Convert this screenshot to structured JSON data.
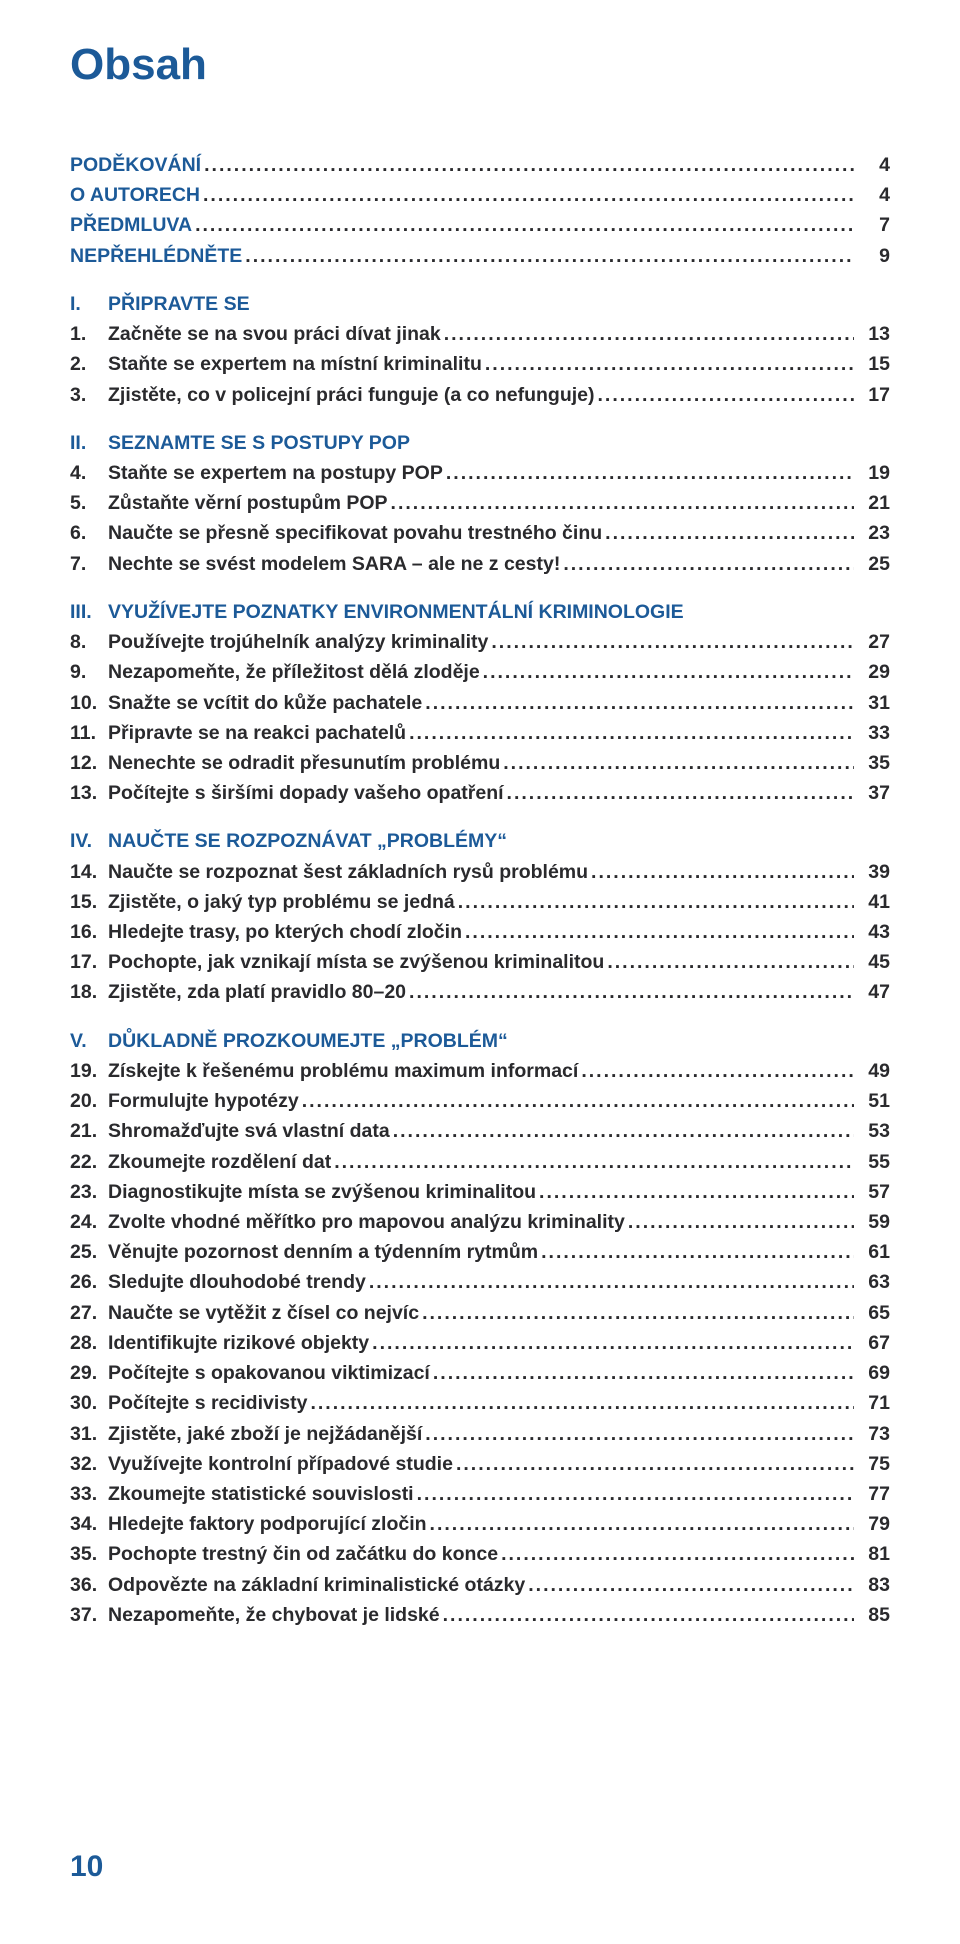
{
  "colors": {
    "heading": "#1c5a98",
    "body": "#2a2a2d",
    "page_bg": "#ffffff"
  },
  "title": "Obsah",
  "footer_page": "10",
  "front_matter": [
    {
      "label": "PODĚKOVÁNÍ",
      "page": "4"
    },
    {
      "label": "O AUTORECH",
      "page": "4"
    },
    {
      "label": "PŘEDMLUVA",
      "page": "7"
    },
    {
      "label": "NEPŘEHLÉDNĚTE",
      "page": "9"
    }
  ],
  "sections": [
    {
      "num": "I.",
      "title": "PŘIPRAVTE SE",
      "items": [
        {
          "n": "1.",
          "t": "Začněte se na svou práci dívat jinak",
          "p": "13"
        },
        {
          "n": "2.",
          "t": "Staňte se expertem na místní kriminalitu",
          "p": "15"
        },
        {
          "n": "3.",
          "t": "Zjistěte, co v policejní práci funguje (a co nefunguje)",
          "p": "17"
        }
      ]
    },
    {
      "num": "II.",
      "title": "SEZNAMTE SE S POSTUPY POP",
      "items": [
        {
          "n": "4.",
          "t": "Staňte se expertem na postupy POP",
          "p": "19"
        },
        {
          "n": "5.",
          "t": "Zůstaňte věrní postupům POP",
          "p": "21"
        },
        {
          "n": "6.",
          "t": "Naučte se přesně specifikovat povahu trestného činu",
          "p": "23"
        },
        {
          "n": "7.",
          "t": "Nechte se svést modelem SARA – ale ne z cesty!",
          "p": "25"
        }
      ]
    },
    {
      "num": "III.",
      "title": "VYUŽÍVEJTE POZNATKY ENVIRONMENTÁLNÍ KRIMINOLOGIE",
      "items": [
        {
          "n": "8.",
          "t": "Používejte trojúhelník analýzy kriminality",
          "p": "27"
        },
        {
          "n": "9.",
          "t": "Nezapomeňte, že příležitost dělá zloděje",
          "p": "29"
        },
        {
          "n": "10.",
          "t": "Snažte se vcítit do kůže pachatele",
          "p": "31"
        },
        {
          "n": "11.",
          "t": "Připravte se na reakci pachatelů",
          "p": "33"
        },
        {
          "n": "12.",
          "t": "Nenechte se odradit přesunutím problému",
          "p": "35"
        },
        {
          "n": "13.",
          "t": "Počítejte s širšími dopady vašeho opatření",
          "p": "37"
        }
      ]
    },
    {
      "num": "IV.",
      "title": "NAUČTE SE ROZPOZNÁVAT „PROBLÉMY“",
      "items": [
        {
          "n": "14.",
          "t": "Naučte se rozpoznat šest základních rysů problému",
          "p": "39"
        },
        {
          "n": "15.",
          "t": "Zjistěte, o jaký typ problému se jedná",
          "p": "41"
        },
        {
          "n": "16.",
          "t": "Hledejte trasy, po kterých chodí zločin",
          "p": "43"
        },
        {
          "n": "17.",
          "t": "Pochopte, jak vznikají místa se zvýšenou kriminalitou",
          "p": "45"
        },
        {
          "n": "18.",
          "t": "Zjistěte, zda platí pravidlo 80–20",
          "p": "47"
        }
      ]
    },
    {
      "num": "V.",
      "title": "DŮKLADNĚ PROZKOUMEJTE „PROBLÉM“",
      "items": [
        {
          "n": "19.",
          "t": "Získejte k řešenému problému maximum informací",
          "p": "49"
        },
        {
          "n": "20.",
          "t": "Formulujte hypotézy",
          "p": "51"
        },
        {
          "n": "21.",
          "t": "Shromažďujte svá vlastní data",
          "p": "53"
        },
        {
          "n": "22.",
          "t": "Zkoumejte rozdělení dat",
          "p": "55"
        },
        {
          "n": "23.",
          "t": "Diagnostikujte místa se zvýšenou kriminalitou",
          "p": "57"
        },
        {
          "n": "24.",
          "t": "Zvolte vhodné měřítko pro mapovou analýzu kriminality",
          "p": "59"
        },
        {
          "n": "25.",
          "t": "Věnujte pozornost denním a týdenním rytmům",
          "p": "61"
        },
        {
          "n": "26.",
          "t": "Sledujte dlouhodobé trendy",
          "p": "63"
        },
        {
          "n": "27.",
          "t": "Naučte se vytěžit z čísel co nejvíc",
          "p": "65"
        },
        {
          "n": "28.",
          "t": "Identifikujte rizikové objekty",
          "p": "67"
        },
        {
          "n": "29.",
          "t": "Počítejte s opakovanou viktimizací",
          "p": "69"
        },
        {
          "n": "30.",
          "t": "Počítejte s recidivisty",
          "p": "71"
        },
        {
          "n": "31.",
          "t": "Zjistěte, jaké zboží je nejžádanější",
          "p": "73"
        },
        {
          "n": "32.",
          "t": "Využívejte kontrolní případové studie",
          "p": "75"
        },
        {
          "n": "33.",
          "t": "Zkoumejte statistické souvislosti",
          "p": "77"
        },
        {
          "n": "34.",
          "t": "Hledejte faktory podporující zločin",
          "p": "79"
        },
        {
          "n": "35.",
          "t": "Pochopte trestný čin od začátku do konce",
          "p": "81"
        },
        {
          "n": "36.",
          "t": "Odpovězte na základní kriminalistické otázky",
          "p": "83"
        },
        {
          "n": "37.",
          "t": "Nezapomeňte, že chybovat je lidské",
          "p": "85"
        }
      ]
    }
  ]
}
